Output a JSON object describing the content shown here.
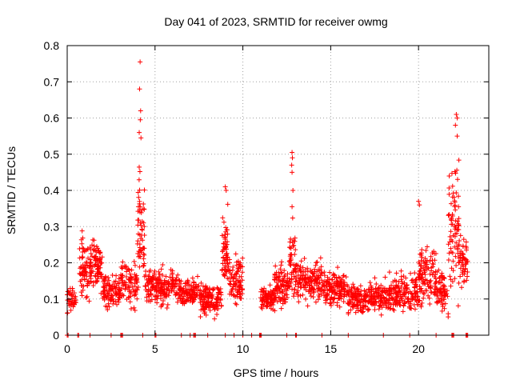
{
  "chart_data": {
    "type": "scatter",
    "title": "Day 041 of 2023, SRMTID for receiver owmg",
    "xlabel": "GPS time / hours",
    "ylabel": "SRMTID / TECUs",
    "xlim": [
      0,
      24
    ],
    "ylim": [
      0,
      0.8
    ],
    "xticks": [
      "0",
      "5",
      "10",
      "15",
      "20"
    ],
    "yticks": [
      "0",
      "0.1",
      "0.2",
      "0.3",
      "0.4",
      "0.5",
      "0.6",
      "0.7",
      "0.8"
    ],
    "grid": true,
    "marker": "+",
    "color": "#ff0000",
    "series": [
      {
        "name": "SRMTID",
        "clusters": [
          {
            "x": [
              0.0,
              0.5
            ],
            "base": 0.1,
            "amp": 0.05,
            "n": 40
          },
          {
            "x": [
              0.7,
              1.3
            ],
            "base": 0.18,
            "amp": 0.12,
            "n": 70
          },
          {
            "x": [
              1.3,
              2.0
            ],
            "base": 0.19,
            "amp": 0.09,
            "n": 90
          },
          {
            "x": [
              2.0,
              3.0
            ],
            "base": 0.12,
            "amp": 0.07,
            "n": 100
          },
          {
            "x": [
              3.0,
              3.5
            ],
            "base": 0.15,
            "amp": 0.1,
            "n": 40
          },
          {
            "x": [
              3.5,
              4.0
            ],
            "base": 0.14,
            "amp": 0.08,
            "n": 50
          },
          {
            "x": [
              4.0,
              4.4
            ],
            "base": 0.3,
            "amp": 0.25,
            "n": 60
          },
          {
            "x": [
              4.4,
              5.0
            ],
            "base": 0.14,
            "amp": 0.06,
            "n": 60
          },
          {
            "x": [
              5.0,
              6.5
            ],
            "base": 0.13,
            "amp": 0.07,
            "n": 150
          },
          {
            "x": [
              6.5,
              7.5
            ],
            "base": 0.12,
            "amp": 0.05,
            "n": 90
          },
          {
            "x": [
              7.5,
              8.8
            ],
            "base": 0.1,
            "amp": 0.06,
            "n": 140
          },
          {
            "x": [
              8.8,
              9.2
            ],
            "base": 0.22,
            "amp": 0.15,
            "n": 60
          },
          {
            "x": [
              9.2,
              10.0
            ],
            "base": 0.15,
            "amp": 0.09,
            "n": 90
          },
          {
            "x": [
              11.0,
              11.8
            ],
            "base": 0.1,
            "amp": 0.05,
            "n": 80
          },
          {
            "x": [
              11.8,
              12.6
            ],
            "base": 0.14,
            "amp": 0.08,
            "n": 90
          },
          {
            "x": [
              12.6,
              13.0
            ],
            "base": 0.2,
            "amp": 0.15,
            "n": 50
          },
          {
            "x": [
              13.0,
              14.5
            ],
            "base": 0.15,
            "amp": 0.08,
            "n": 150
          },
          {
            "x": [
              14.5,
              16.0
            ],
            "base": 0.13,
            "amp": 0.07,
            "n": 150
          },
          {
            "x": [
              16.0,
              17.5
            ],
            "base": 0.1,
            "amp": 0.06,
            "n": 140
          },
          {
            "x": [
              17.5,
              19.0
            ],
            "base": 0.11,
            "amp": 0.07,
            "n": 140
          },
          {
            "x": [
              19.0,
              20.0
            ],
            "base": 0.12,
            "amp": 0.08,
            "n": 90
          },
          {
            "x": [
              20.0,
              21.0
            ],
            "base": 0.16,
            "amp": 0.12,
            "n": 110
          },
          {
            "x": [
              21.0,
              21.7
            ],
            "base": 0.12,
            "amp": 0.08,
            "n": 70
          },
          {
            "x": [
              21.7,
              22.3
            ],
            "base": 0.3,
            "amp": 0.25,
            "n": 80
          },
          {
            "x": [
              22.3,
              22.8
            ],
            "base": 0.2,
            "amp": 0.1,
            "n": 50
          }
        ],
        "outliers": [
          {
            "x": 4.15,
            "y": 0.755
          },
          {
            "x": 4.12,
            "y": 0.68
          },
          {
            "x": 4.18,
            "y": 0.62
          },
          {
            "x": 4.16,
            "y": 0.595
          },
          {
            "x": 4.1,
            "y": 0.56
          },
          {
            "x": 4.2,
            "y": 0.545
          },
          {
            "x": 9.0,
            "y": 0.41
          },
          {
            "x": 9.05,
            "y": 0.4
          },
          {
            "x": 12.8,
            "y": 0.505
          },
          {
            "x": 12.82,
            "y": 0.49
          },
          {
            "x": 12.78,
            "y": 0.47
          },
          {
            "x": 12.8,
            "y": 0.45
          },
          {
            "x": 12.85,
            "y": 0.4
          },
          {
            "x": 12.8,
            "y": 0.355
          },
          {
            "x": 20.0,
            "y": 0.37
          },
          {
            "x": 20.05,
            "y": 0.36
          },
          {
            "x": 22.15,
            "y": 0.61
          },
          {
            "x": 22.2,
            "y": 0.6
          },
          {
            "x": 22.1,
            "y": 0.58
          },
          {
            "x": 22.2,
            "y": 0.55
          }
        ],
        "zeros": [
          0.0,
          0.05,
          0.6,
          0.65,
          1.3,
          2.5,
          3.05,
          3.1,
          3.15,
          4.3,
          5.0,
          5.05,
          6.5,
          7.0,
          7.2,
          7.25,
          7.3,
          8.0,
          9.0,
          9.5,
          10.0,
          10.5,
          10.95,
          11.0,
          11.05,
          12.5,
          13.0,
          13.05,
          14.5,
          16.0,
          18.0,
          19.5,
          21.0,
          21.9,
          21.95,
          22.0,
          22.7,
          22.75,
          22.8
        ]
      }
    ]
  }
}
